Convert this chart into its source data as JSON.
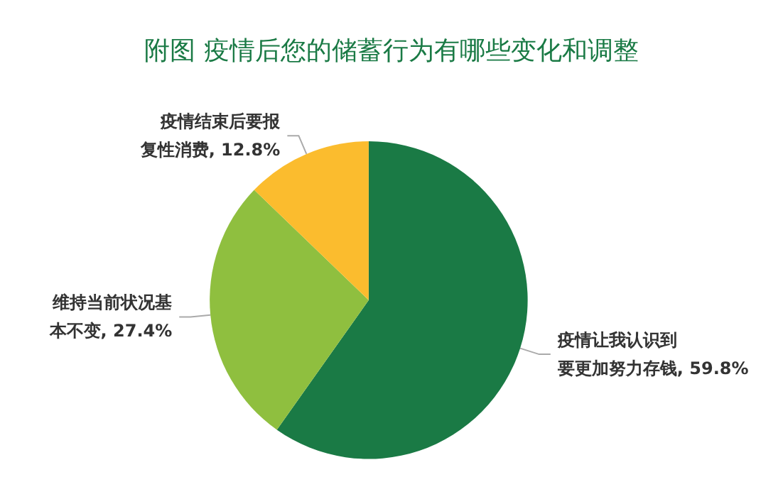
{
  "chart_data": {
    "type": "pie",
    "title": "附图 疫情后您的储蓄行为有哪些变化和调整",
    "categories": [
      "疫情让我认识到要更加努力存钱",
      "维持当前状况基本不变",
      "疫情结束后要报复性消费"
    ],
    "values": [
      59.8,
      27.4,
      12.8
    ],
    "value_labels": [
      "59.8%",
      "27.4%",
      "12.8%"
    ],
    "colors": [
      "#1a7a45",
      "#8fbf3f",
      "#fbbc2e"
    ],
    "data_labels": true,
    "legend": false
  }
}
